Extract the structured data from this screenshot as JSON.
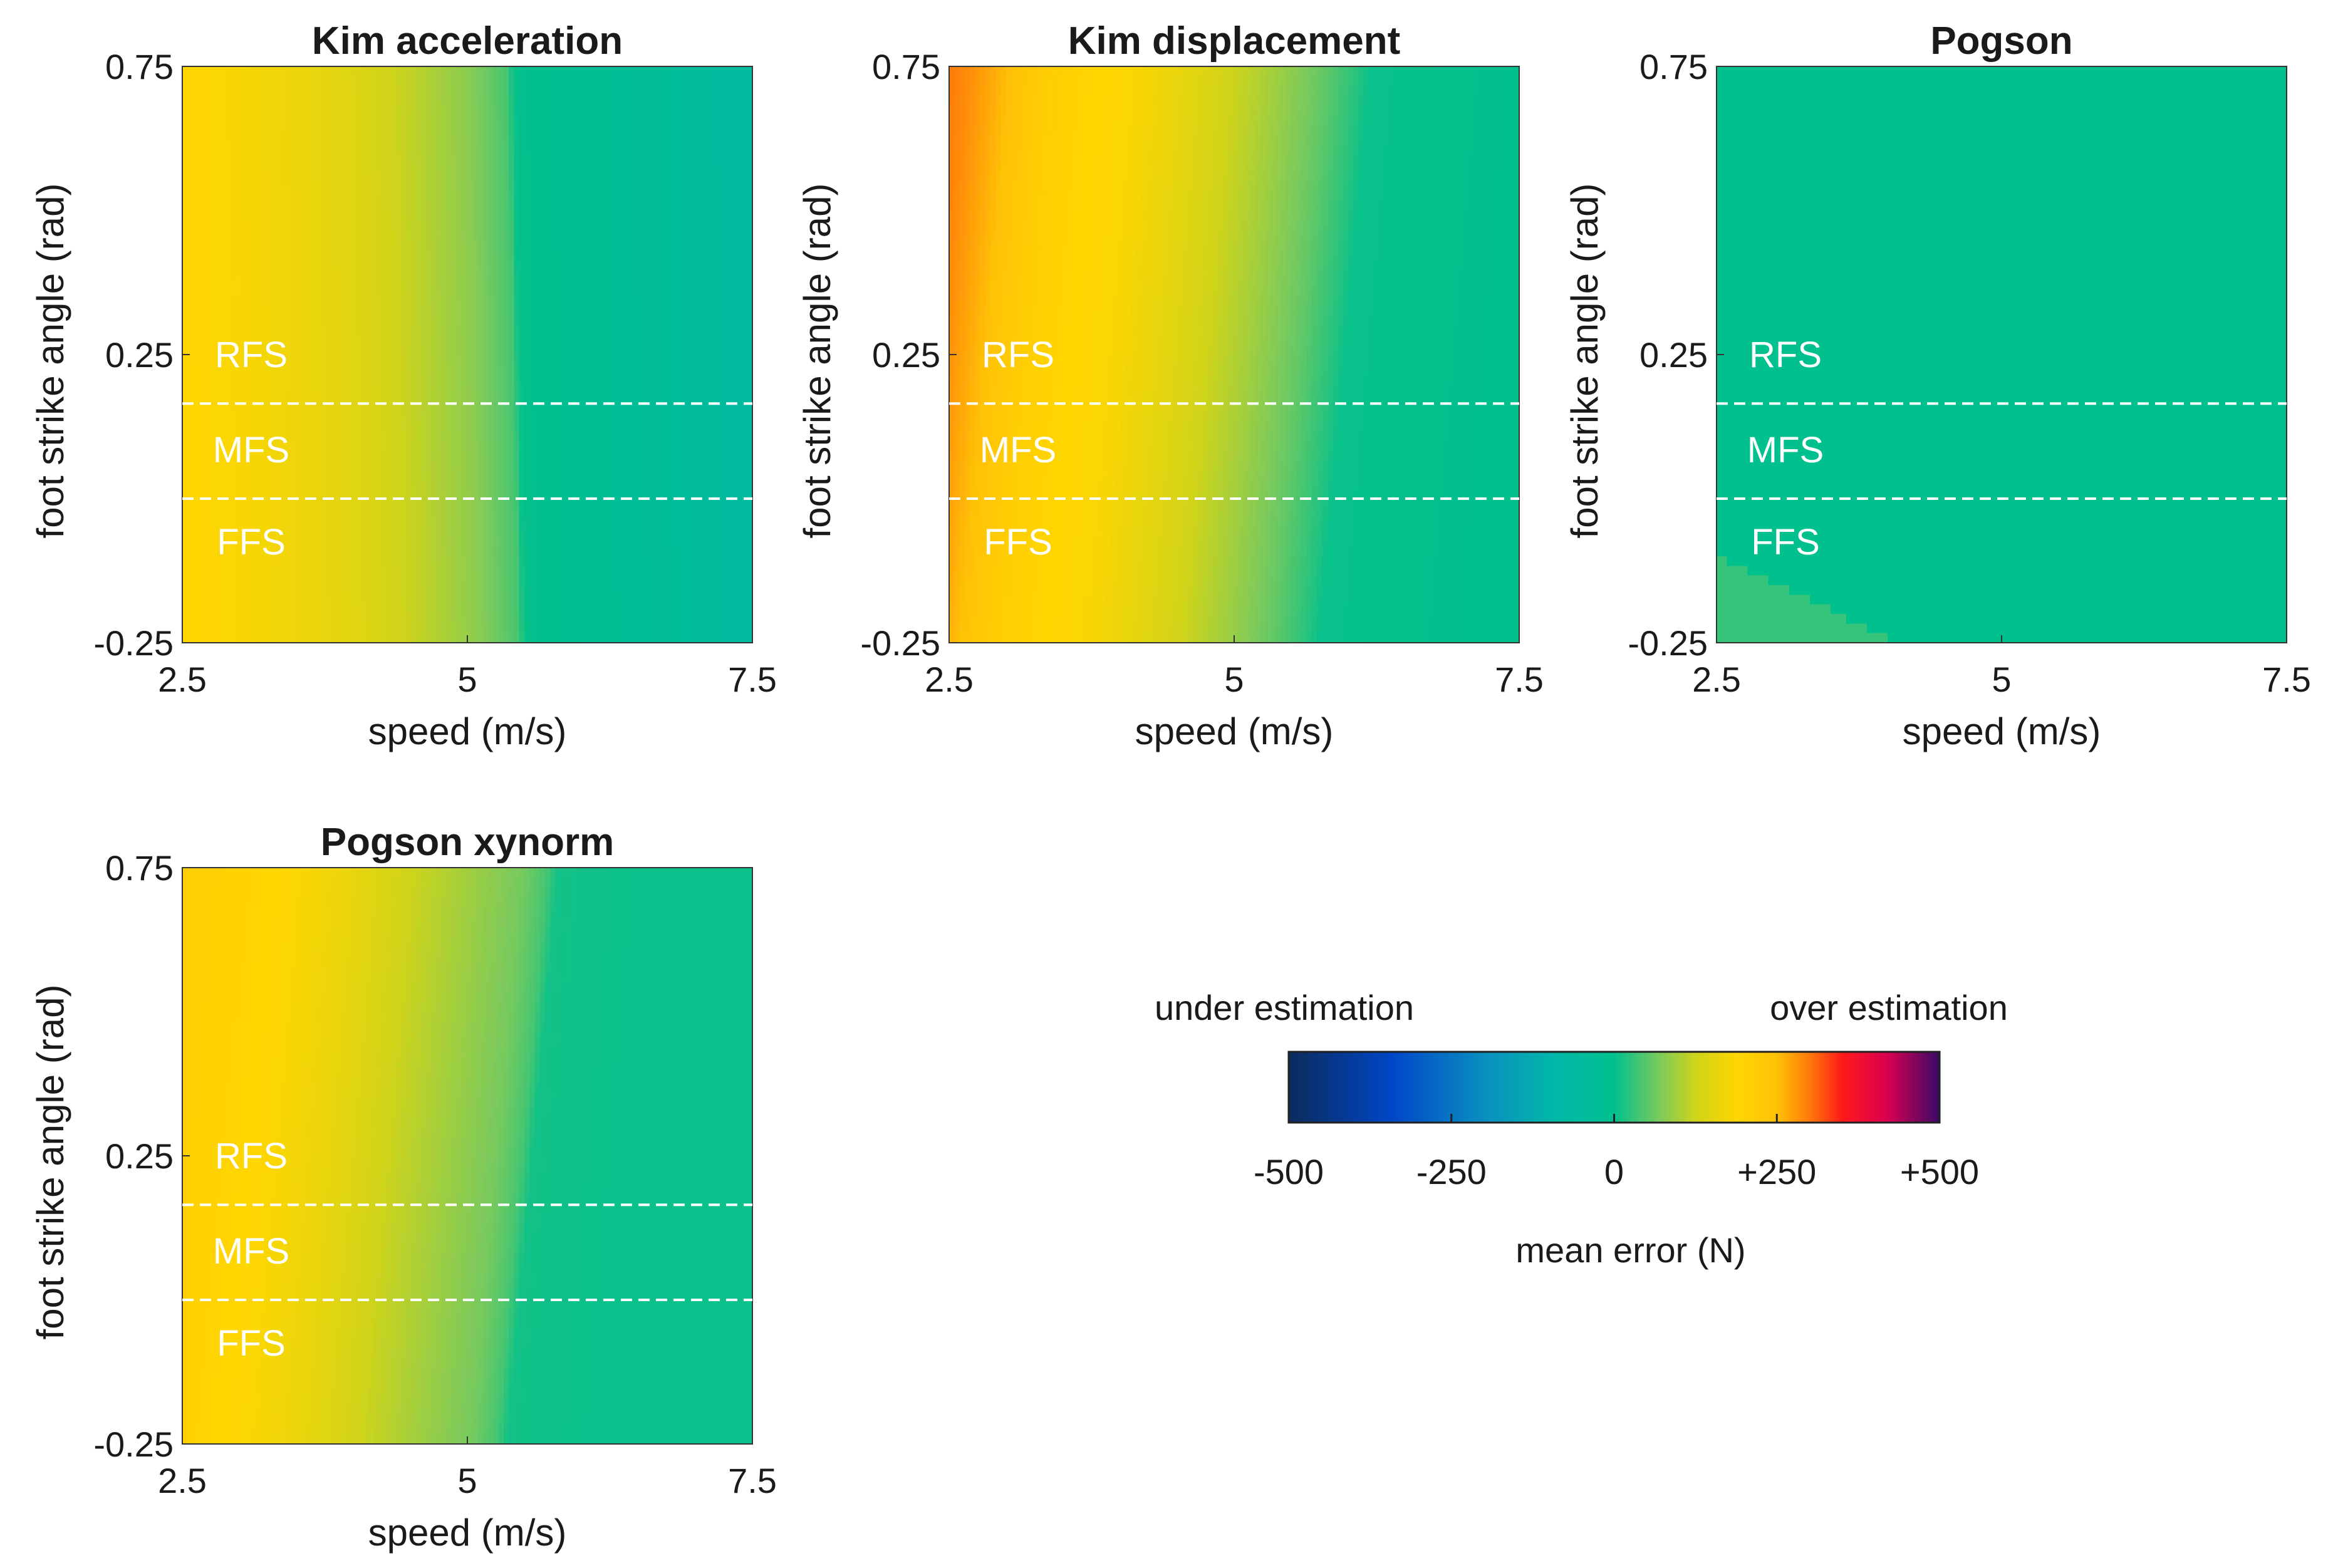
{
  "figure": {
    "ylabel": "foot strike angle (rad)",
    "xlabel": "speed (m/s)",
    "region_labels": [
      "RFS",
      "MFS",
      "FFS"
    ]
  },
  "colorbar": {
    "label": "mean error (N)",
    "left_caption": "under estimation",
    "right_caption": "over estimation",
    "ticks": [
      "-500",
      "-250",
      "0",
      "+250",
      "+500"
    ],
    "range": [
      -500,
      500
    ],
    "stops": [
      {
        "v": -500,
        "c": "#0d2b5c"
      },
      {
        "v": -340,
        "c": "#0046c8"
      },
      {
        "v": -200,
        "c": "#0a8fc0"
      },
      {
        "v": -90,
        "c": "#00b8a8"
      },
      {
        "v": 0,
        "c": "#00c08e"
      },
      {
        "v": 70,
        "c": "#7cca5c"
      },
      {
        "v": 125,
        "c": "#cfd41a"
      },
      {
        "v": 190,
        "c": "#ffd600"
      },
      {
        "v": 250,
        "c": "#ffc107"
      },
      {
        "v": 300,
        "c": "#ff7a0a"
      },
      {
        "v": 350,
        "c": "#ff1a1a"
      },
      {
        "v": 420,
        "c": "#d80050"
      },
      {
        "v": 500,
        "c": "#3a0a66"
      }
    ]
  },
  "chart_data": [
    {
      "type": "heatmap",
      "title": "Kim acceleration",
      "xlabel": "speed (m/s)",
      "ylabel": "foot strike angle (rad)",
      "x_ticks": [
        "2.5",
        "5",
        "7.5"
      ],
      "y_ticks": [
        "0.75",
        "0.25",
        "-0.25"
      ],
      "xlim": [
        2.5,
        7.5
      ],
      "ylim": [
        -0.25,
        0.75
      ],
      "boundaries": [
        0.165,
        0.0
      ],
      "profile": {
        "x": [
          2.5,
          3.0,
          3.5,
          4.0,
          4.5,
          5.0,
          5.35,
          5.4,
          6.0,
          6.5,
          7.0,
          7.5
        ],
        "v": [
          190,
          180,
          165,
          145,
          115,
          80,
          40,
          5,
          -15,
          -30,
          -45,
          -60
        ]
      },
      "shift": [
        0.1,
        0.0
      ]
    },
    {
      "type": "heatmap",
      "title": "Kim displacement",
      "xlabel": "speed (m/s)",
      "ylabel": "foot strike angle (rad)",
      "x_ticks": [
        "2.5",
        "5",
        "7.5"
      ],
      "y_ticks": [
        "0.75",
        "0.25",
        "-0.25"
      ],
      "xlim": [
        2.5,
        7.5
      ],
      "ylim": [
        -0.25,
        0.75
      ],
      "boundaries": [
        0.165,
        0.0
      ],
      "profile": {
        "x": [
          2.5,
          2.7,
          3.0,
          3.3,
          3.7,
          4.2,
          4.8,
          5.3,
          5.8,
          6.1,
          6.2,
          7.5
        ],
        "v": [
          300,
          285,
          255,
          220,
          195,
          180,
          140,
          100,
          55,
          20,
          5,
          0
        ]
      },
      "shift": [
        -0.45,
        0.0
      ]
    },
    {
      "type": "heatmap",
      "title": "Pogson",
      "xlabel": "speed (m/s)",
      "ylabel": "foot strike angle (rad)",
      "x_ticks": [
        "2.5",
        "5",
        "7.5"
      ],
      "y_ticks": [
        "0.75",
        "0.25",
        "-0.25"
      ],
      "xlim": [
        2.5,
        7.5
      ],
      "ylim": [
        -0.25,
        0.75
      ],
      "boundaries": [
        0.165,
        0.0
      ],
      "profile": {
        "x": [
          2.5,
          7.5
        ],
        "v": [
          0,
          0
        ]
      },
      "shift": [
        0,
        0
      ],
      "patch": {
        "value": 30,
        "from": [
          [
            2.5,
            -0.1
          ],
          [
            2.5,
            -0.25
          ],
          [
            4.1,
            -0.25
          ]
        ]
      }
    },
    {
      "type": "heatmap",
      "title": "Pogson xynorm",
      "xlabel": "speed (m/s)",
      "ylabel": "foot strike angle (rad)",
      "x_ticks": [
        "2.5",
        "5",
        "7.5"
      ],
      "y_ticks": [
        "0.75",
        "0.25",
        "-0.25"
      ],
      "xlim": [
        2.5,
        7.5
      ],
      "ylim": [
        -0.25,
        0.75
      ],
      "boundaries": [
        0.165,
        0.0
      ],
      "profile": {
        "x": [
          2.5,
          3.0,
          3.5,
          4.0,
          4.5,
          5.0,
          5.5,
          5.7,
          5.8,
          6.5,
          7.5
        ],
        "v": [
          210,
          200,
          185,
          160,
          125,
          95,
          65,
          40,
          10,
          5,
          5
        ]
      },
      "shift": [
        -0.45,
        0.0
      ]
    }
  ]
}
